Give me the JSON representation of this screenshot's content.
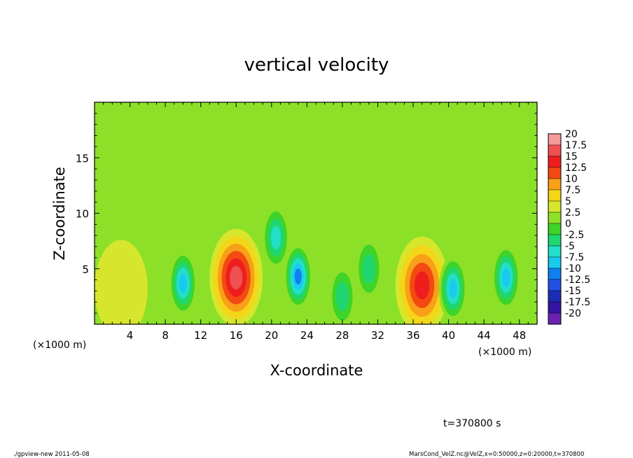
{
  "chart_data": {
    "type": "heatmap",
    "title": "vertical velocity",
    "xlabel": "X-coordinate",
    "ylabel": "Z-coordinate",
    "x_unit_label": "(×1000 m)",
    "y_unit_label": "(×1000 m)",
    "xlim": [
      0,
      50
    ],
    "ylim": [
      0,
      20
    ],
    "x_ticks": [
      4,
      8,
      12,
      16,
      20,
      24,
      28,
      32,
      36,
      40,
      44,
      48
    ],
    "y_ticks": [
      5,
      10,
      15
    ],
    "colorbar": {
      "labels": [
        "20",
        "17.5",
        "15",
        "12.5",
        "10",
        "7.5",
        "5",
        "2.5",
        "0",
        "-2.5",
        "-5",
        "-7.5",
        "-10",
        "-12.5",
        "-15",
        "-17.5",
        "-20"
      ],
      "colors": [
        "#f49a9a",
        "#f05050",
        "#ee1e1e",
        "#f24a12",
        "#f8a018",
        "#f4d618",
        "#d6e62c",
        "#8ce028",
        "#3ed42a",
        "#20d670",
        "#24dfc8",
        "#18cbee",
        "#1080ee",
        "#2450e4",
        "#1c2cb4",
        "#3414a4",
        "#6a22b0"
      ]
    },
    "field": {
      "background_value": 0.6,
      "features": [
        {
          "x": 16.0,
          "z": 4.2,
          "value": 15.0
        },
        {
          "x": 37.0,
          "z": 3.5,
          "value": 13.0
        },
        {
          "x": 3.0,
          "z": 3.2,
          "value": 3.5
        },
        {
          "x": 10.0,
          "z": 3.7,
          "value": -9.0
        },
        {
          "x": 23.0,
          "z": 4.3,
          "value": -11.0
        },
        {
          "x": 20.5,
          "z": 7.8,
          "value": -6.0
        },
        {
          "x": 40.5,
          "z": 3.2,
          "value": -7.5
        },
        {
          "x": 46.5,
          "z": 4.2,
          "value": -9.0
        },
        {
          "x": 28.0,
          "z": 2.5,
          "value": -4.0
        },
        {
          "x": 31.0,
          "z": 5.0,
          "value": -3.0
        }
      ]
    }
  },
  "footer": {
    "time_label": "t=370800 s",
    "program_label": "./gpview-new  2011-05-08",
    "source_label": "MarsCond_VelZ.nc@VelZ,x=0:50000,z=0:20000,t=370800"
  }
}
